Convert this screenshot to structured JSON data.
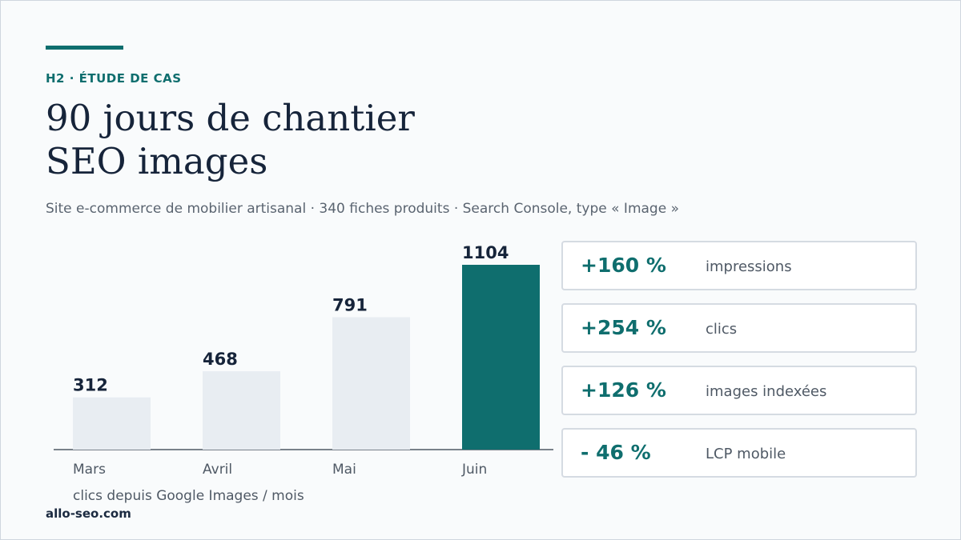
{
  "header": {
    "eyebrow": "H2 · ÉTUDE DE CAS",
    "title_line1": "90 jours de chantier",
    "title_line2": "SEO images",
    "subtitle": "Site e-commerce de mobilier artisanal · 340 fiches produits · Search Console, type « Image »"
  },
  "chart_data": {
    "type": "bar",
    "categories": [
      "Mars",
      "Avril",
      "Mai",
      "Juin"
    ],
    "values": [
      312,
      468,
      791,
      1104
    ],
    "value_labels": [
      "312",
      "468",
      "791",
      "1104"
    ],
    "xlabel": "clics depuis Google Images / mois",
    "ylabel": "",
    "ylim": [
      0,
      1104
    ],
    "grid": false,
    "highlight_index": 3,
    "colors": {
      "default": "#e8edf2",
      "highlight": "#0f6e6e",
      "text": "#16243a",
      "axis": "#4f5965"
    }
  },
  "stats": [
    {
      "value": "+160 %",
      "label": "impressions"
    },
    {
      "value": "+254 %",
      "label": "clics"
    },
    {
      "value": "+126 %",
      "label": "images indexées"
    },
    {
      "value": "- 46 %",
      "label": "LCP mobile"
    }
  ],
  "footer": {
    "site": "allo-seo.com"
  },
  "colors": {
    "accent": "#0f6e6e",
    "heading": "#16243a",
    "muted": "#5a6470",
    "card_border": "#d5dbe2"
  }
}
